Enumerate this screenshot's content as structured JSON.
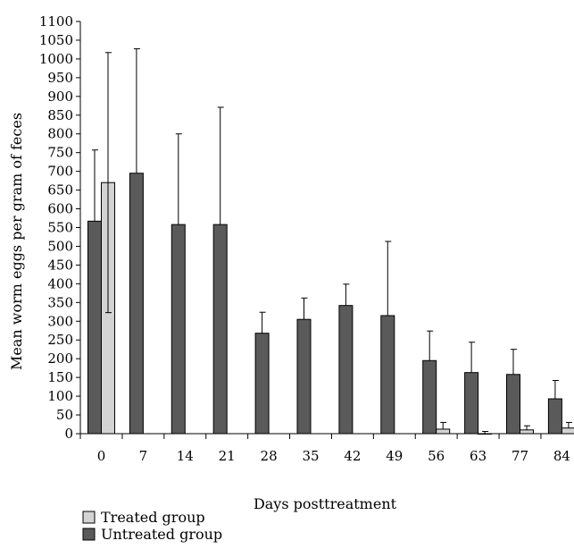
{
  "chart_data": {
    "type": "bar",
    "xlabel": "Days posttreatment",
    "ylabel": "Mean worm eggs per gram of feces",
    "ylim": [
      0,
      1100
    ],
    "yticks": [
      0,
      50,
      100,
      150,
      200,
      250,
      300,
      350,
      400,
      450,
      500,
      550,
      600,
      650,
      700,
      750,
      800,
      850,
      900,
      950,
      1000,
      1050,
      1100
    ],
    "categories": [
      "0",
      "7",
      "14",
      "21",
      "28",
      "35",
      "42",
      "49",
      "56",
      "63",
      "77",
      "84"
    ],
    "series": [
      {
        "name": "Untreated group",
        "color": "#5a5a5a",
        "values": [
          567,
          695,
          558,
          558,
          268,
          305,
          342,
          315,
          195,
          163,
          158,
          93
        ],
        "error": [
          190,
          332,
          242,
          313,
          56,
          57,
          57,
          198,
          79,
          81,
          67,
          49
        ]
      },
      {
        "name": "Treated group",
        "color": "#d3d3d3",
        "values": [
          670,
          null,
          null,
          null,
          null,
          null,
          null,
          null,
          12,
          0,
          10,
          15
        ],
        "error": [
          347,
          null,
          null,
          null,
          null,
          null,
          null,
          null,
          18,
          6,
          11,
          15
        ]
      }
    ],
    "legend": {
      "placement": "bottom-left",
      "items": [
        {
          "label": "Treated group",
          "color": "#d3d3d3"
        },
        {
          "label": "Untreated group",
          "color": "#5a5a5a"
        }
      ]
    },
    "grid": false
  }
}
